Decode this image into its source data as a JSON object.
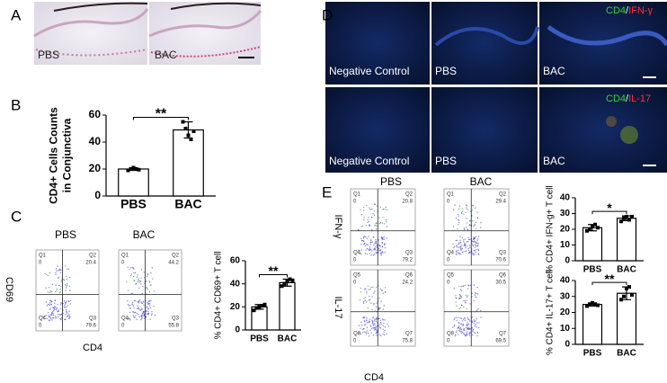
{
  "panels": [
    {
      "label": "A",
      "captions": [
        "PBS",
        "BAC"
      ]
    },
    {
      "label": "B"
    },
    {
      "label": "C",
      "columns": [
        "PBS",
        "BAC"
      ],
      "x_label": "CD4",
      "y_labels": [
        "CD69"
      ],
      "plots": [
        {
          "quadrants": [
            {
              "name": "Q1",
              "value": 0
            },
            {
              "name": "Q2",
              "value": 20.4
            },
            {
              "name": "Q3",
              "value": 79.6
            },
            {
              "name": "Q4",
              "value": 0
            }
          ]
        },
        {
          "quadrants": [
            {
              "name": "Q1",
              "value": 0
            },
            {
              "name": "Q2",
              "value": 44.2
            },
            {
              "name": "Q3",
              "value": 55.8
            },
            {
              "name": "Q4",
              "value": 0
            }
          ]
        }
      ]
    },
    {
      "label": "D",
      "rows": [
        {
          "captions": [
            "Negative Control",
            "PBS",
            "BAC"
          ],
          "marker": [
            "CD4",
            "/",
            "IFN-γ"
          ]
        },
        {
          "captions": [
            "Negative Control",
            "PBS",
            "BAC"
          ],
          "marker": [
            "CD4",
            "/",
            "IL-17"
          ]
        }
      ]
    },
    {
      "label": "E",
      "columns": [
        "PBS",
        "BAC"
      ],
      "x_label": "CD4",
      "y_labels": [
        "IFN-γ",
        "IL-17"
      ],
      "plots": [
        {
          "quadrants": [
            {
              "name": "Q1",
              "value": 0
            },
            {
              "name": "Q2",
              "value": 20.8
            },
            {
              "name": "Q3",
              "value": 79.2
            },
            {
              "name": "Q4",
              "value": 0
            }
          ]
        },
        {
          "quadrants": [
            {
              "name": "Q1",
              "value": 0
            },
            {
              "name": "Q2",
              "value": 29.4
            },
            {
              "name": "Q3",
              "value": 70.6
            },
            {
              "name": "Q4",
              "value": 0
            }
          ]
        },
        {
          "quadrants": [
            {
              "name": "Q5",
              "value": 0
            },
            {
              "name": "Q6",
              "value": 24.2
            },
            {
              "name": "Q7",
              "value": 75.8
            },
            {
              "name": "Q8",
              "value": 0
            }
          ]
        },
        {
          "quadrants": [
            {
              "name": "Q5",
              "value": 0
            },
            {
              "name": "Q6",
              "value": 30.5
            },
            {
              "name": "Q7",
              "value": 69.5
            },
            {
              "name": "Q8",
              "value": 0
            }
          ]
        }
      ]
    }
  ],
  "chart_data": [
    {
      "type": "bar",
      "y_label": [
        "CD4+ Cells Counts",
        "in Conjunctiva"
      ],
      "categories": [
        "PBS",
        "BAC"
      ],
      "values": [
        20,
        49
      ],
      "errors": [
        1,
        6
      ],
      "points": [
        [
          19,
          20,
          21,
          20,
          19.5
        ],
        [
          55,
          50,
          45,
          42,
          48
        ]
      ],
      "significance": "**",
      "color": "#ffffff",
      "ylim": [
        0,
        60
      ],
      "yticks": [
        0,
        20,
        40,
        60
      ]
    },
    {
      "type": "bar",
      "y_label": [
        "% CD4+ CD69+ T cell"
      ],
      "categories": [
        "PBS",
        "BAC"
      ],
      "values": [
        20,
        41
      ],
      "errors": [
        2,
        3
      ],
      "points": [
        [
          17,
          19,
          20,
          21,
          22
        ],
        [
          38,
          40,
          42,
          44,
          43
        ]
      ],
      "significance": "**",
      "color": "#ffffff",
      "ylim": [
        0,
        60
      ],
      "yticks": [
        0,
        20,
        40,
        60
      ]
    },
    {
      "type": "bar",
      "y_label": [
        "% CD4+ IFN-g+ T cell"
      ],
      "categories": [
        "PBS",
        "BAC"
      ],
      "values": [
        21,
        27
      ],
      "errors": [
        2,
        1.5
      ],
      "points": [
        [
          19,
          20,
          22,
          23,
          21
        ],
        [
          25,
          27,
          28,
          26,
          28
        ]
      ],
      "significance": "*",
      "color": "#ffffff",
      "ylim": [
        0,
        40
      ],
      "yticks": [
        0,
        10,
        20,
        30,
        40
      ]
    },
    {
      "type": "bar",
      "y_label": [
        "% CD4+ IL-17+ T cell"
      ],
      "categories": [
        "PBS",
        "BAC"
      ],
      "values": [
        25,
        32
      ],
      "errors": [
        1,
        4
      ],
      "points": [
        [
          24,
          25,
          26,
          25,
          24.5
        ],
        [
          28,
          30,
          35,
          36,
          31
        ]
      ],
      "significance": "**",
      "color": "#ffffff",
      "ylim": [
        0,
        40
      ],
      "yticks": [
        0,
        10,
        20,
        30,
        40
      ]
    }
  ]
}
